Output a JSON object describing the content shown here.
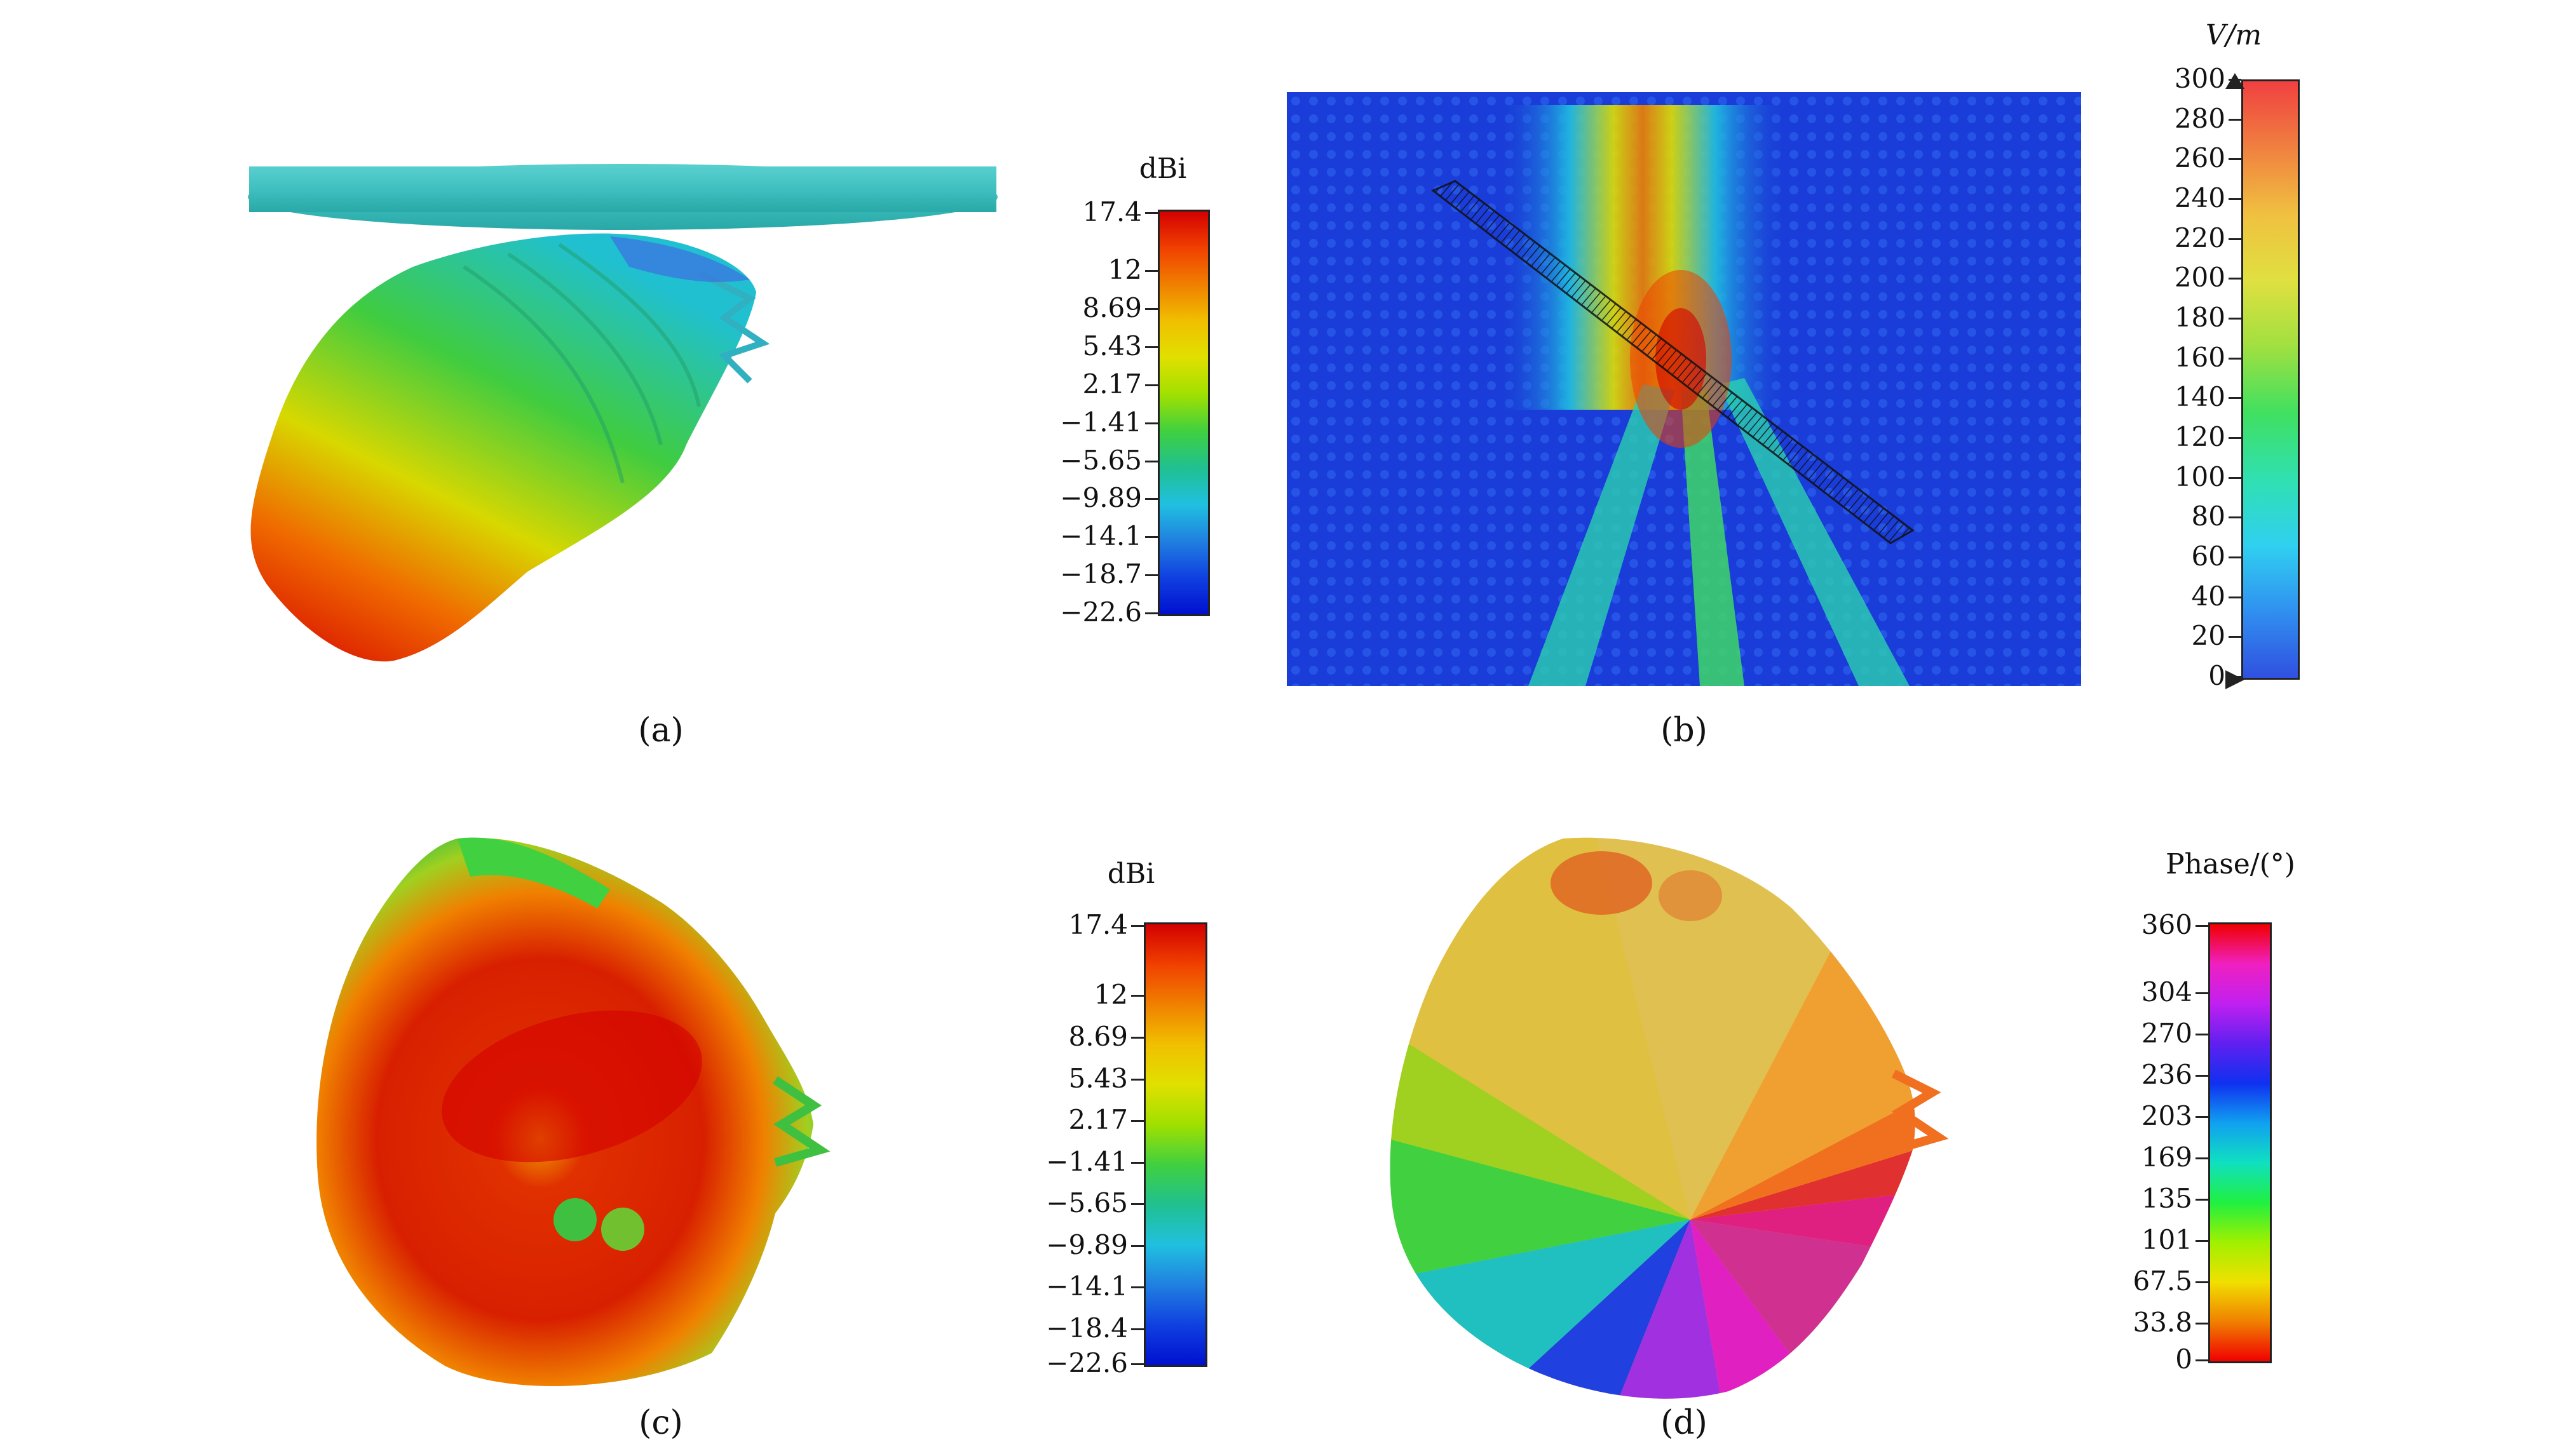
{
  "panels": {
    "a": {
      "caption": "(a)",
      "colorbar": {
        "title": "dBi",
        "ticks": [
          "17.4",
          "12",
          "8.69",
          "5.43",
          "2.17",
          "−1.41",
          "−5.65",
          "−9.89",
          "−14.1",
          "−18.7",
          "−22.6"
        ]
      }
    },
    "b": {
      "caption": "(b)",
      "colorbar": {
        "title": "V/m",
        "ticks": [
          "300",
          "280",
          "260",
          "240",
          "220",
          "200",
          "180",
          "160",
          "140",
          "120",
          "100",
          "80",
          "60",
          "40",
          "20",
          "0"
        ]
      }
    },
    "c": {
      "caption": "(c)",
      "colorbar": {
        "title": "dBi",
        "ticks": [
          "17.4",
          "12",
          "8.69",
          "5.43",
          "2.17",
          "−1.41",
          "−5.65",
          "−9.89",
          "−14.1",
          "−18.4",
          "−22.6"
        ]
      }
    },
    "d": {
      "caption": "(d)",
      "colorbar": {
        "title": "Phase/(°)",
        "ticks": [
          "360",
          "304",
          "270",
          "236",
          "203",
          "169",
          "135",
          "101",
          "67.5",
          "33.8",
          "0"
        ]
      }
    }
  },
  "colors": {
    "jet_top": "#d40000",
    "jet_bottom": "#0010d0",
    "field_background": "#1a3cd8",
    "disc": "#3fbfbf"
  }
}
